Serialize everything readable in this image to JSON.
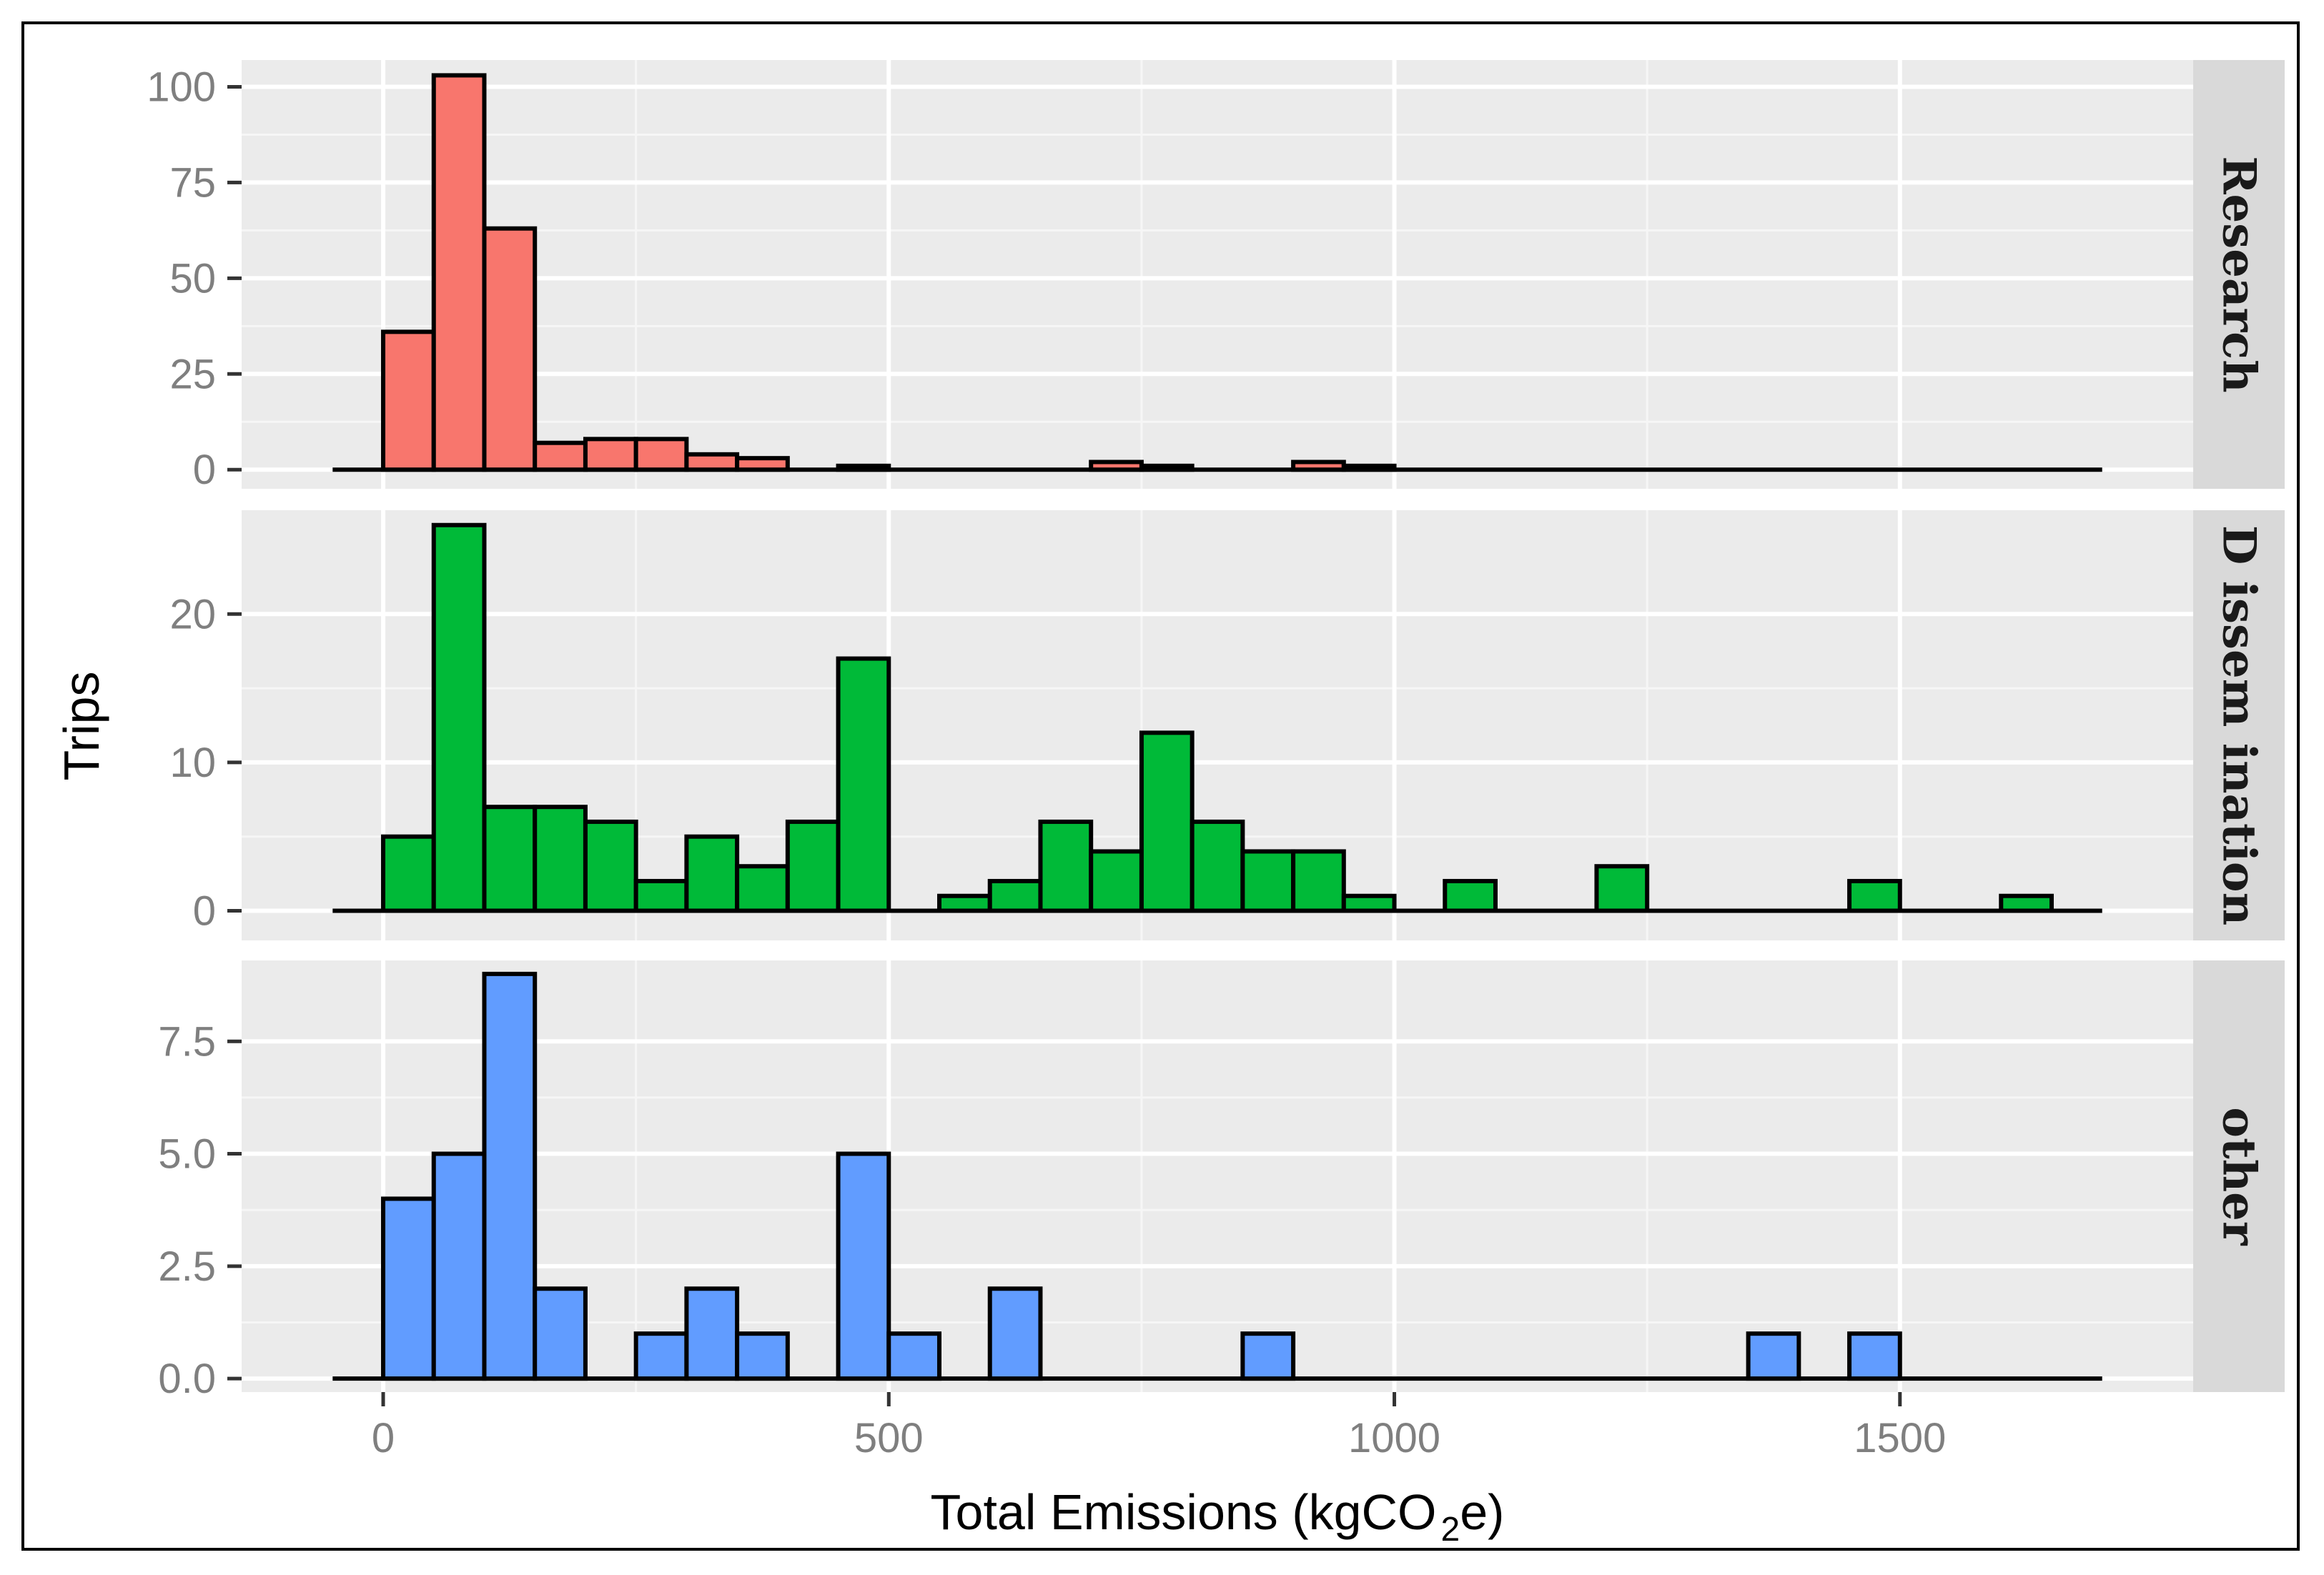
{
  "chart_data": {
    "type": "bar",
    "xlabel": "Total Emissions (kgCO",
    "xlabel_sub": "2",
    "xlabel_end": "e)",
    "ylabel": "Trips",
    "x_ticks": [
      "0",
      "500",
      "1000",
      "1500"
    ],
    "x_tick_values": [
      0,
      500,
      1000,
      1500
    ],
    "xlim": [
      -140,
      1790
    ],
    "bin_width": 50,
    "baseline_range": [
      -50,
      1700
    ],
    "colors": {
      "Research": "#F8766D",
      "Dissemination": "#00BA38",
      "other": "#619CFF"
    },
    "panels": [
      {
        "name": "Research",
        "strip": "Research",
        "ylim": [
          -5,
          107
        ],
        "y_ticks": [
          "0",
          "25",
          "50",
          "75",
          "100"
        ],
        "y_tick_values": [
          0,
          25,
          50,
          75,
          100
        ],
        "bin_starts": [
          0,
          50,
          100,
          150,
          200,
          250,
          300,
          350,
          450,
          700,
          750,
          900,
          950
        ],
        "values": [
          36,
          103,
          63,
          7,
          8,
          8,
          4,
          3,
          1,
          2,
          1,
          2,
          1
        ]
      },
      {
        "name": "Dissemination",
        "strip": "D issem ination",
        "ylim": [
          -2,
          27
        ],
        "y_ticks": [
          "0",
          "10",
          "20"
        ],
        "y_tick_values": [
          0,
          10,
          20
        ],
        "bin_starts": [
          0,
          50,
          100,
          150,
          200,
          250,
          300,
          350,
          400,
          450,
          550,
          600,
          650,
          700,
          750,
          800,
          850,
          900,
          950,
          1050,
          1200,
          1450,
          1600
        ],
        "values": [
          5,
          26,
          7,
          7,
          6,
          2,
          5,
          3,
          6,
          17,
          1,
          2,
          6,
          4,
          12,
          6,
          4,
          4,
          1,
          2,
          3,
          2,
          1
        ]
      },
      {
        "name": "other",
        "strip": "other",
        "ylim": [
          -0.3,
          9.3
        ],
        "y_ticks": [
          "0.0",
          "2.5",
          "5.0",
          "7.5"
        ],
        "y_tick_values": [
          0,
          2.5,
          5,
          7.5
        ],
        "bin_starts": [
          0,
          50,
          100,
          150,
          250,
          300,
          350,
          450,
          500,
          600,
          850,
          1350,
          1450
        ],
        "values": [
          4,
          5,
          9,
          2,
          1,
          2,
          1,
          5,
          1,
          2,
          1,
          1,
          1
        ]
      }
    ]
  }
}
